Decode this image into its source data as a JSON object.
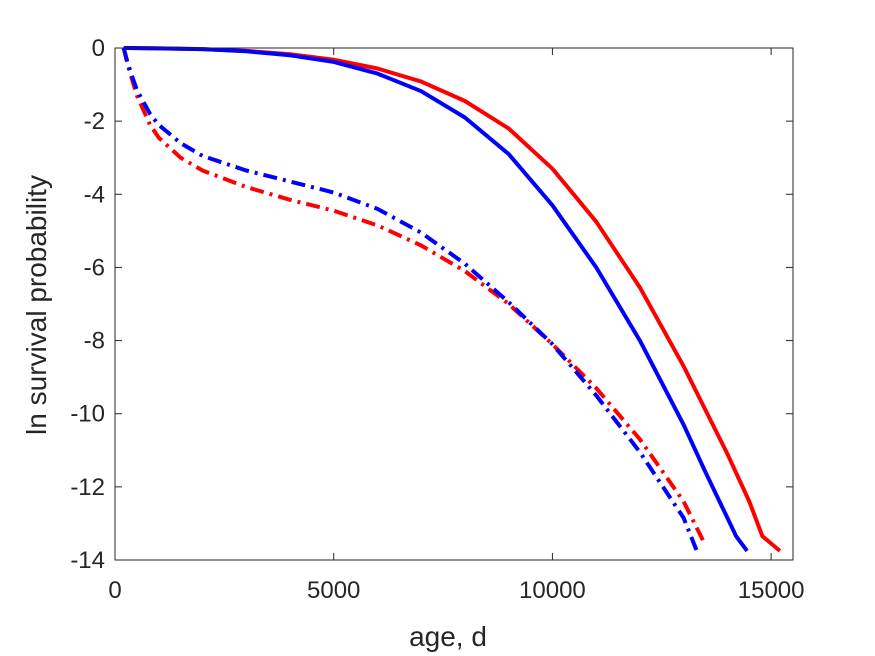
{
  "chart_data": {
    "type": "line",
    "title": "",
    "xlabel": "age, d",
    "ylabel": "ln survival probability",
    "xlim": [
      0,
      15500
    ],
    "ylim": [
      -14,
      0
    ],
    "xticks": [
      0,
      5000,
      10000,
      15000
    ],
    "yticks": [
      0,
      -2,
      -4,
      -6,
      -8,
      -10,
      -12,
      -14
    ],
    "xtick_labels": [
      "0",
      "5000",
      "10000",
      "15000"
    ],
    "ytick_labels": [
      "0",
      "-2",
      "-4",
      "-6",
      "-8",
      "-10",
      "-12",
      "-14"
    ],
    "grid": false,
    "legend": "none",
    "series": [
      {
        "color": "#ff0000",
        "style": "solid",
        "x": [
          200,
          1000,
          2000,
          3000,
          4000,
          5000,
          6000,
          7000,
          8000,
          9000,
          10000,
          11000,
          12000,
          13000,
          13500,
          14000,
          14500,
          14800,
          15000,
          15200
        ],
        "y": [
          0,
          -0.01,
          -0.03,
          -0.08,
          -0.17,
          -0.32,
          -0.56,
          -0.92,
          -1.45,
          -2.2,
          -3.3,
          -4.75,
          -6.55,
          -8.7,
          -9.9,
          -11.1,
          -12.4,
          -13.35,
          -13.55,
          -13.75
        ]
      },
      {
        "color": "#0000ff",
        "style": "solid",
        "x": [
          200,
          1000,
          2000,
          3000,
          4000,
          5000,
          6000,
          7000,
          8000,
          9000,
          10000,
          11000,
          12000,
          13000,
          13500,
          14000,
          14200,
          14450
        ],
        "y": [
          0,
          -0.01,
          -0.03,
          -0.09,
          -0.2,
          -0.38,
          -0.7,
          -1.18,
          -1.9,
          -2.9,
          -4.3,
          -6.0,
          -8.0,
          -10.3,
          -11.6,
          -12.85,
          -13.35,
          -13.75
        ]
      },
      {
        "color": "#ff0000",
        "style": "dashdot",
        "x": [
          200,
          300,
          500,
          800,
          1000,
          1500,
          2000,
          3000,
          4000,
          5000,
          6000,
          7000,
          8000,
          9000,
          10000,
          11000,
          12000,
          13000,
          13500
        ],
        "y": [
          0,
          -0.5,
          -1.3,
          -2.1,
          -2.45,
          -3.0,
          -3.35,
          -3.8,
          -4.15,
          -4.45,
          -4.85,
          -5.4,
          -6.1,
          -7.0,
          -8.1,
          -9.3,
          -10.7,
          -12.4,
          -13.6
        ]
      },
      {
        "color": "#0000ff",
        "style": "dashdot",
        "x": [
          200,
          300,
          500,
          800,
          1000,
          1500,
          2000,
          3000,
          4000,
          5000,
          6000,
          7000,
          8000,
          9000,
          10000,
          11000,
          12000,
          13000,
          13300
        ],
        "y": [
          0,
          -0.45,
          -1.15,
          -1.8,
          -2.1,
          -2.6,
          -2.95,
          -3.35,
          -3.65,
          -3.95,
          -4.4,
          -5.05,
          -5.9,
          -6.95,
          -8.1,
          -9.5,
          -11.05,
          -12.85,
          -13.75
        ]
      }
    ]
  }
}
